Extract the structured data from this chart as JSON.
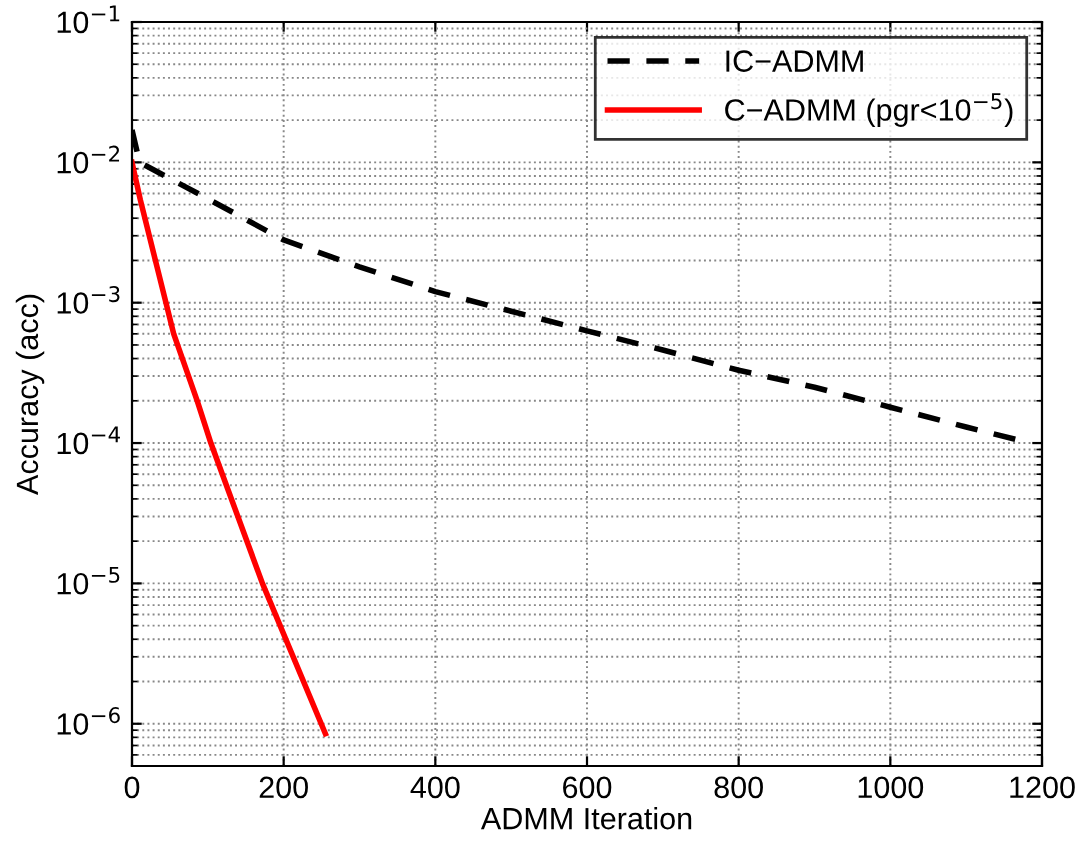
{
  "chart_data": {
    "type": "line",
    "xlabel": "ADMM Iteration",
    "ylabel": "Accuracy (acc)",
    "log": "y",
    "grid": true,
    "legend": "top right",
    "xlim": [
      0,
      1200
    ],
    "xticks": [
      0,
      200,
      400,
      600,
      800,
      1000,
      1200
    ],
    "ylim": [
      5e-07,
      0.1
    ],
    "yticks": [
      {
        "value": 0.1,
        "label": "10$^{−1}$"
      },
      {
        "value": 0.01,
        "label": "10$^{−2}$"
      },
      {
        "value": 0.001,
        "label": "10$^{−3}$"
      },
      {
        "value": 0.0001,
        "label": "10$^{−4}$"
      },
      {
        "value": 1e-05,
        "label": "10$^{−5}$"
      },
      {
        "value": 1e-06,
        "label": "10$^{−6}$"
      }
    ],
    "series": [
      {
        "name": "IC−ADMM",
        "color": "#000000",
        "line_style": "dashed",
        "x": [
          0,
          10,
          100,
          200,
          300,
          400,
          500,
          600,
          700,
          800,
          900,
          1000,
          1100,
          1185
        ],
        "values": [
          0.017,
          0.01,
          0.0055,
          0.0028,
          0.0018,
          0.0012,
          0.00087,
          0.00063,
          0.00046,
          0.00033,
          0.00025,
          0.00018,
          0.00013,
          0.0001
        ]
      },
      {
        "name": "C−ADMM (pgr<10$^{−5}$)",
        "color": "#ff0000",
        "line_style": "solid",
        "x": [
          0,
          11,
          33,
          55,
          86,
          104,
          172,
          255
        ],
        "values": [
          0.01,
          0.0054,
          0.0018,
          0.0006,
          0.0002,
          0.0001,
          1e-05,
          8.5e-07
        ]
      }
    ]
  }
}
